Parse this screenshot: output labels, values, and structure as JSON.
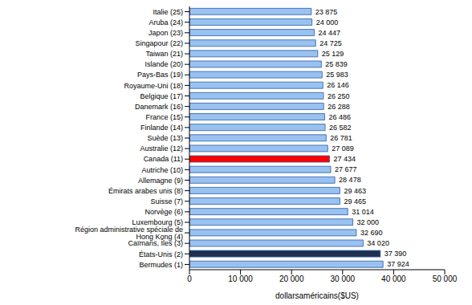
{
  "chart_data": {
    "type": "bar",
    "orientation": "horizontal",
    "x_label": "dollarsaméricains($US)",
    "categories": [
      "Italie (25)",
      "Aruba (24)",
      "Japon (23)",
      "Singapour (22)",
      "Taiwan (21)",
      "Islande (20)",
      "Pays-Bas (19)",
      "Royaume-Uni (18)",
      "Belgique (17)",
      "Danemark (16)",
      "France (15)",
      "Finlande (14)",
      "Suède (13)",
      "Australie (12)",
      "Canada (11)",
      "Autriche (10)",
      "Allemagne (9)",
      "Émirats arabes unis (8)",
      "Suisse (7)",
      "Norvège (6)",
      "Luxembourg (5)",
      "Région administrative spéciale de Hong Kong (4)",
      "Caïmans, Îles (3)",
      "États-Unis (2)",
      "Bermudes (1)"
    ],
    "values": [
      23875,
      24000,
      24447,
      24725,
      25129,
      25839,
      25983,
      26146,
      26250,
      26288,
      26486,
      26582,
      26781,
      27089,
      27434,
      27677,
      28478,
      29463,
      29465,
      31014,
      32000,
      32690,
      34020,
      37390,
      37924
    ],
    "value_labels": [
      "23 875",
      "24 000",
      "24 447",
      "24 725",
      "25 129",
      "25 839",
      "25 983",
      "26 146",
      "26 250",
      "26 288",
      "26 486",
      "26 582",
      "26 781",
      "27 089",
      "27 434",
      "27 677",
      "28 478",
      "29 463",
      "29 465",
      "31 014",
      "32 000",
      "32 690",
      "34 020",
      "37 390",
      "37 924"
    ],
    "data_labels": true,
    "colors": [
      "#99c2f0",
      "#99c2f0",
      "#99c2f0",
      "#99c2f0",
      "#99c2f0",
      "#99c2f0",
      "#99c2f0",
      "#99c2f0",
      "#99c2f0",
      "#99c2f0",
      "#99c2f0",
      "#99c2f0",
      "#99c2f0",
      "#99c2f0",
      "#ff0000",
      "#99c2f0",
      "#99c2f0",
      "#99c2f0",
      "#99c2f0",
      "#99c2f0",
      "#99c2f0",
      "#99c2f0",
      "#99c2f0",
      "#1f3050",
      "#99c2f0"
    ],
    "xlim": [
      0,
      50000
    ],
    "xticks": [
      0,
      {
        "value": 10000,
        "label": "10 000"
      },
      {
        "value": 20000,
        "label": "20 000"
      },
      {
        "value": 30000,
        "label": "30 000"
      },
      {
        "value": 40000,
        "label": "40 000"
      },
      {
        "value": 50000,
        "label": "50 000"
      }
    ],
    "grid": false
  }
}
